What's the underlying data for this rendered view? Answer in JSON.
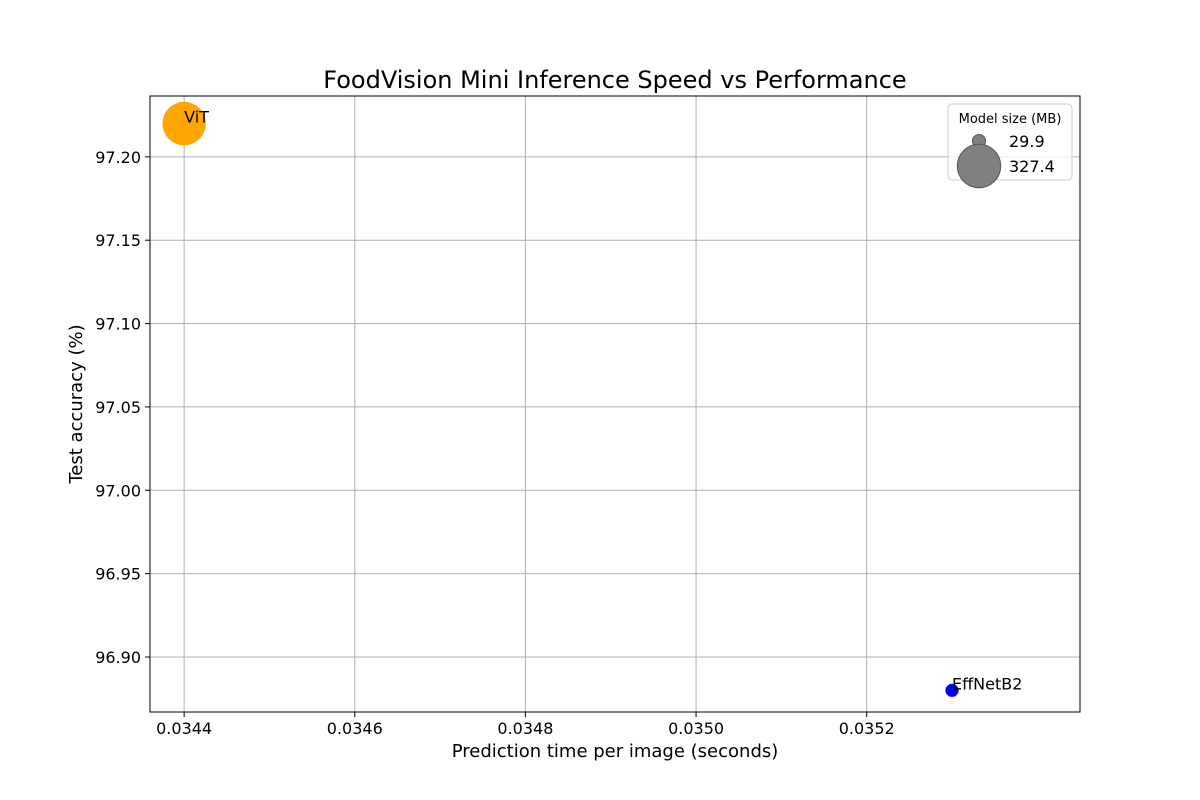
{
  "chart_data": {
    "type": "scatter",
    "title": "FoodVision Mini Inference Speed vs Performance",
    "xlabel": "Prediction time per image (seconds)",
    "ylabel": "Test accuracy (%)",
    "xlim": [
      0.03436,
      0.03545
    ],
    "ylim": [
      96.867,
      97.2365
    ],
    "xticks": [
      0.0344,
      0.0346,
      0.0348,
      0.035,
      0.0352
    ],
    "xtick_labels": [
      "0.0344",
      "0.0346",
      "0.0348",
      "0.0350",
      "0.0352"
    ],
    "yticks": [
      96.9,
      96.95,
      97.0,
      97.05,
      97.1,
      97.15,
      97.2
    ],
    "ytick_labels": [
      "96.90",
      "96.95",
      "97.00",
      "97.05",
      "97.10",
      "97.15",
      "97.20"
    ],
    "grid": true,
    "points": [
      {
        "label": "ViT",
        "x": 0.0344,
        "y": 97.22,
        "model_size_mb": 327.4,
        "color": "#ffa500"
      },
      {
        "label": "EffNetB2",
        "x": 0.0353,
        "y": 96.88,
        "model_size_mb": 29.9,
        "color": "#0000ff"
      }
    ],
    "legend": {
      "title": "Model size (MB)",
      "placement": "top-right",
      "entries": [
        {
          "label": "29.9",
          "size_mb": 29.9
        },
        {
          "label": "327.4",
          "size_mb": 327.4
        }
      ],
      "marker_color": "#808080"
    }
  }
}
